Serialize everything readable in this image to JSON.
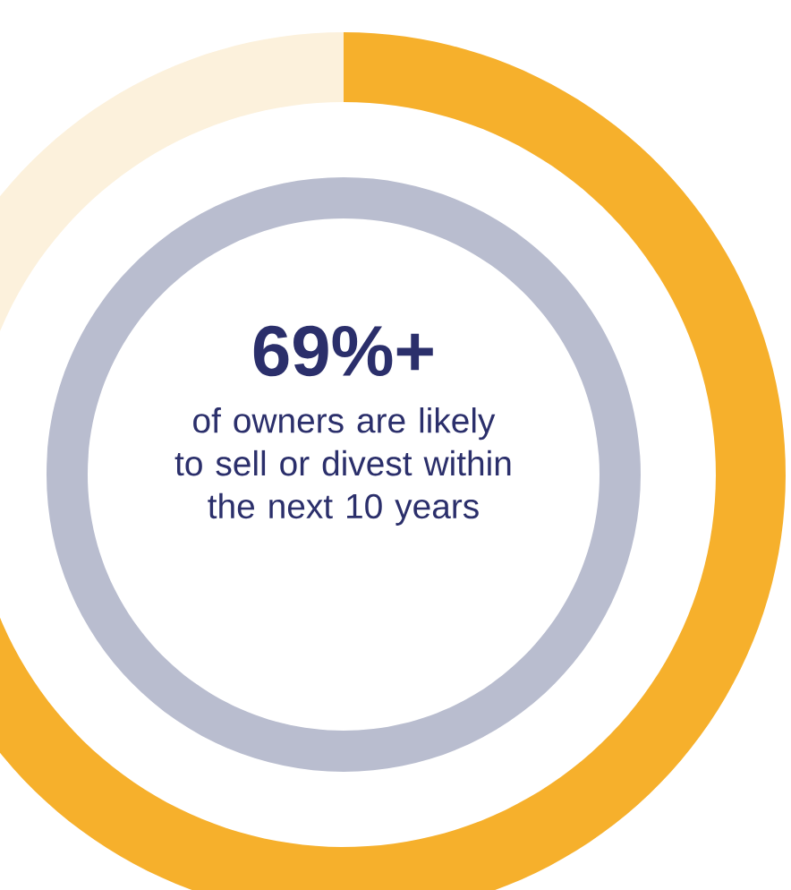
{
  "chart_data": {
    "type": "donut",
    "title": "69%+",
    "subtitle": "of owners are likely to sell or divest within the next 10 years",
    "categories": [
      null,
      null
    ],
    "values": [
      69,
      31
    ],
    "colors": [
      "#f6b02c",
      "#fcf1dc"
    ]
  }
}
